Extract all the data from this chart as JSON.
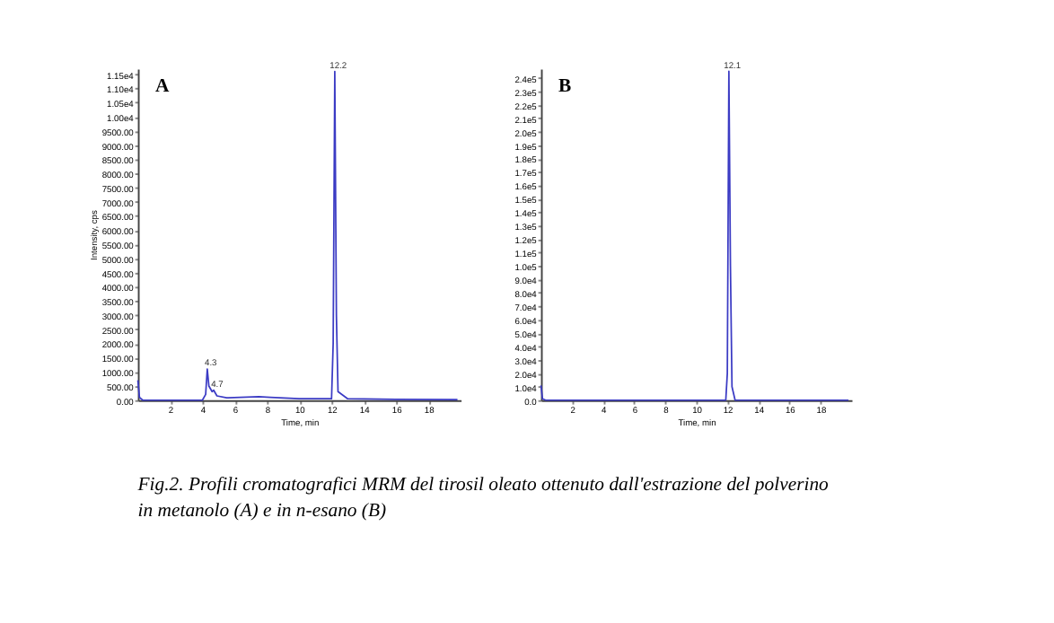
{
  "chart_data": [
    {
      "type": "line",
      "title": "A",
      "xlabel": "Time, min",
      "ylabel": "Intensity, cps",
      "x": [
        0,
        0.1,
        0.3,
        4.0,
        4.2,
        4.3,
        4.4,
        4.6,
        4.7,
        4.9,
        5.5,
        7.5,
        8.2,
        10,
        12.0,
        12.1,
        12.2,
        12.3,
        12.4,
        13,
        16,
        19.8
      ],
      "series": [
        {
          "color": "#3b3bc4",
          "values": [
            700,
            100,
            0,
            0,
            200,
            1100,
            500,
            300,
            350,
            150,
            80,
            120,
            100,
            50,
            50,
            2000,
            11600,
            3000,
            300,
            50,
            30,
            20
          ]
        }
      ],
      "xlim": [
        0,
        20
      ],
      "xticks": [
        2,
        4,
        6,
        8,
        10,
        12,
        14,
        16,
        18
      ],
      "ylim": [
        0,
        11700
      ],
      "yticks": [
        {
          "value": 0,
          "label": "0.00"
        },
        {
          "value": 500,
          "label": "500.00"
        },
        {
          "value": 1000,
          "label": "1000.00"
        },
        {
          "value": 1500,
          "label": "1500.00"
        },
        {
          "value": 2000,
          "label": "2000.00"
        },
        {
          "value": 2500,
          "label": "2500.00"
        },
        {
          "value": 3000,
          "label": "3000.00"
        },
        {
          "value": 3500,
          "label": "3500.00"
        },
        {
          "value": 4000,
          "label": "4000.00"
        },
        {
          "value": 4500,
          "label": "4500.00"
        },
        {
          "value": 5000,
          "label": "5000.00"
        },
        {
          "value": 5500,
          "label": "5500.00"
        },
        {
          "value": 6000,
          "label": "6000.00"
        },
        {
          "value": 6500,
          "label": "6500.00"
        },
        {
          "value": 7000,
          "label": "7000.00"
        },
        {
          "value": 7500,
          "label": "7500.00"
        },
        {
          "value": 8000,
          "label": "8000.00"
        },
        {
          "value": 8500,
          "label": "8500.00"
        },
        {
          "value": 9000,
          "label": "9000.00"
        },
        {
          "value": 9500,
          "label": "9500.00"
        },
        {
          "value": 10000,
          "label": "1.00e4"
        },
        {
          "value": 10500,
          "label": "1.05e4"
        },
        {
          "value": 11000,
          "label": "1.10e4"
        },
        {
          "value": 11500,
          "label": "1.15e4"
        }
      ],
      "grid": false,
      "annotations": [
        {
          "text": "4.3",
          "x": 4.3,
          "y": 1100
        },
        {
          "text": "4.7",
          "x": 4.7,
          "y": 350
        },
        {
          "text": "12.2",
          "x": 12.2,
          "y": 11600
        }
      ]
    },
    {
      "type": "line",
      "title": "B",
      "xlabel": "Time, min",
      "x": [
        0,
        0.1,
        0.3,
        11.9,
        12.0,
        12.1,
        12.2,
        12.3,
        12.5,
        19.8
      ],
      "series": [
        {
          "color": "#3b3bc4",
          "values": [
            11000,
            1000,
            0,
            0,
            20000,
            245000,
            100000,
            10000,
            0,
            0
          ]
        }
      ],
      "xlim": [
        0,
        20
      ],
      "xticks": [
        2,
        4,
        6,
        8,
        10,
        12,
        14,
        16,
        18
      ],
      "ylim": [
        0,
        247000
      ],
      "yticks": [
        {
          "value": 0,
          "label": "0.0"
        },
        {
          "value": 10000,
          "label": "1.0e4"
        },
        {
          "value": 20000,
          "label": "2.0e4"
        },
        {
          "value": 30000,
          "label": "3.0e4"
        },
        {
          "value": 40000,
          "label": "4.0e4"
        },
        {
          "value": 50000,
          "label": "5.0e4"
        },
        {
          "value": 60000,
          "label": "6.0e4"
        },
        {
          "value": 70000,
          "label": "7.0e4"
        },
        {
          "value": 80000,
          "label": "8.0e4"
        },
        {
          "value": 90000,
          "label": "9.0e4"
        },
        {
          "value": 100000,
          "label": "1.0e5"
        },
        {
          "value": 110000,
          "label": "1.1e5"
        },
        {
          "value": 120000,
          "label": "1.2e5"
        },
        {
          "value": 130000,
          "label": "1.3e5"
        },
        {
          "value": 140000,
          "label": "1.4e5"
        },
        {
          "value": 150000,
          "label": "1.5e5"
        },
        {
          "value": 160000,
          "label": "1.6e5"
        },
        {
          "value": 170000,
          "label": "1.7e5"
        },
        {
          "value": 180000,
          "label": "1.8e5"
        },
        {
          "value": 190000,
          "label": "1.9e5"
        },
        {
          "value": 200000,
          "label": "2.0e5"
        },
        {
          "value": 210000,
          "label": "2.1e5"
        },
        {
          "value": 220000,
          "label": "2.2e5"
        },
        {
          "value": 230000,
          "label": "2.3e5"
        },
        {
          "value": 240000,
          "label": "2.4e5"
        }
      ],
      "grid": false,
      "annotations": [
        {
          "text": "12.1",
          "x": 12.1,
          "y": 245000
        },
        "Fig.2. Profili cromatografici MRM del tirosil oleato ottenuto dall'estrazione del polverino in metanolo (A) e in n-esano (B)"
      ]
    }
  ]
}
